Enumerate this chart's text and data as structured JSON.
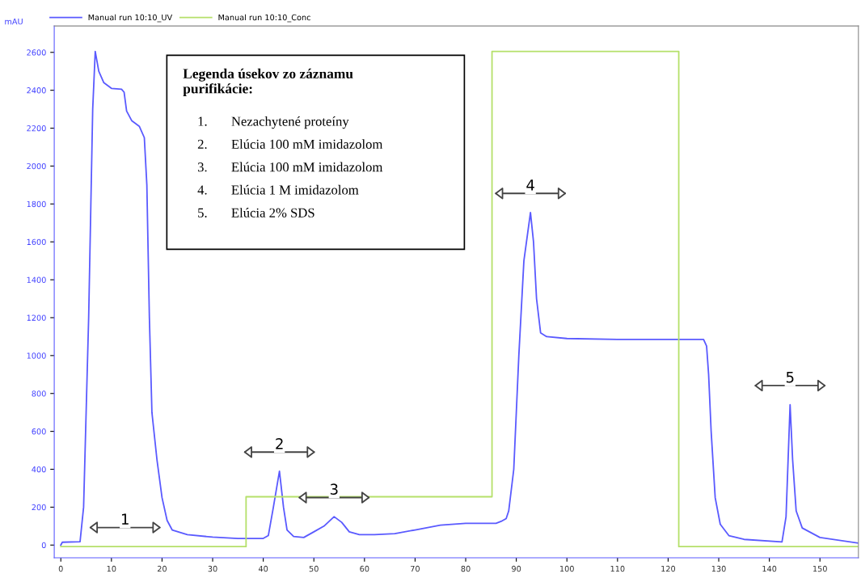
{
  "chart_data": {
    "type": "line",
    "ylabel": "mAU",
    "xlim": [
      -1.3,
      157.6
    ],
    "ylim": [
      -67,
      2739
    ],
    "xticks": [
      0,
      10,
      20,
      30,
      40,
      50,
      60,
      70,
      80,
      90,
      100,
      110,
      120,
      130,
      140,
      150
    ],
    "yticks": [
      0,
      200,
      400,
      600,
      800,
      1000,
      1200,
      1400,
      1600,
      1800,
      2000,
      2200,
      2400,
      2600
    ],
    "grid": false,
    "legend": "top left",
    "marker": "none",
    "line_style": "solid",
    "series": [
      {
        "name": "Manual run 10:10_UV",
        "color": "#5a5aff",
        "x": [
          0,
          0.3,
          3.8,
          4.5,
          5.5,
          6.3,
          6.8,
          7.5,
          8.5,
          10,
          12,
          12.5,
          13,
          14,
          15.5,
          16.5,
          17,
          17.5,
          18,
          19,
          20,
          21,
          22,
          25,
          30,
          35,
          40,
          41,
          42,
          43.2,
          44,
          44.7,
          46,
          48,
          50,
          52,
          54,
          55.5,
          57,
          59,
          62,
          66,
          70,
          75,
          80,
          86,
          87,
          88,
          88.5,
          89.5,
          90.5,
          91.5,
          92.8,
          93.4,
          94,
          94.8,
          96,
          100,
          110,
          120,
          127,
          127.6,
          128,
          128.5,
          129.3,
          130.3,
          132,
          135,
          142.5,
          143.3,
          144.1,
          144.6,
          145.3,
          146.5,
          150,
          157.6
        ],
        "values": [
          0,
          15,
          18,
          200,
          1200,
          2300,
          2605,
          2500,
          2440,
          2410,
          2405,
          2390,
          2290,
          2240,
          2210,
          2150,
          1900,
          1200,
          700,
          450,
          250,
          130,
          80,
          55,
          42,
          35,
          35,
          50,
          200,
          390,
          200,
          80,
          45,
          40,
          70,
          100,
          150,
          120,
          70,
          55,
          55,
          60,
          80,
          105,
          115,
          115,
          125,
          140,
          180,
          400,
          1000,
          1500,
          1755,
          1600,
          1300,
          1120,
          1100,
          1090,
          1085,
          1085,
          1085,
          1050,
          900,
          600,
          250,
          110,
          50,
          30,
          17,
          150,
          741,
          450,
          180,
          90,
          40,
          10
        ]
      },
      {
        "name": "Manual run 10:10_Conc",
        "color": "#b5e06a",
        "x": [
          0,
          36.6,
          36.6,
          85.2,
          85.2,
          122.1,
          122.1,
          157.6
        ],
        "values": [
          -8,
          -8,
          255,
          255,
          2605,
          2605,
          -8,
          -8
        ]
      }
    ],
    "annotations": [
      "Legenda úsekov zo záznamu\npurifikácie:",
      "1.\tNezachytené proteíny",
      "2.\tElúcia 100 mM imidazolom",
      "3.\tElúcia 100 mM imidazolom",
      "4.\tElúcia 1 M imidazolom",
      "5.\tElúcia 2% SDS",
      {
        "text": "1",
        "x": 12.7,
        "y": -8
      },
      {
        "text": "2",
        "x": 43.2,
        "y": 390
      },
      {
        "text": "3",
        "x": 54,
        "y": 150
      },
      {
        "text": "4",
        "x": 92.8,
        "y": 1755
      },
      {
        "text": "5",
        "x": 144.1,
        "y": 741
      }
    ]
  }
}
